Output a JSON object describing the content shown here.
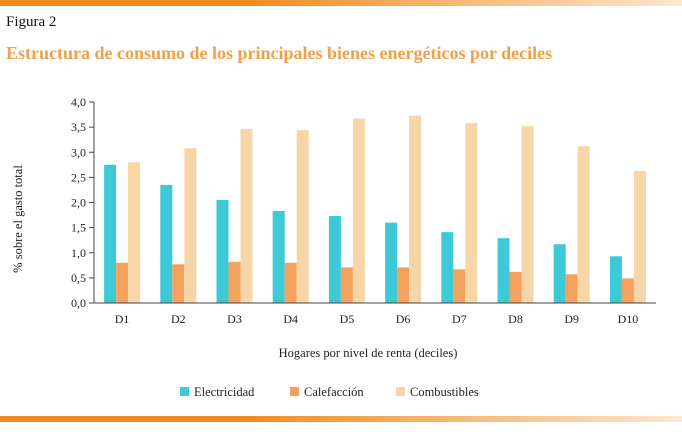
{
  "figure": {
    "label": "Figura 2",
    "title": "Estructura de consumo de los principales bienes energéticos por deciles"
  },
  "colors": {
    "accent": "#f0a048",
    "rule_start": "#f28a1e",
    "rule_end": "#fde7cf",
    "Electricidad": "#3ec9d6",
    "Calefacción": "#f4a15e",
    "Combustibles": "#f6d6a6",
    "axis": "#444444"
  },
  "chart_data": {
    "type": "bar",
    "title": "Estructura de consumo de los principales bienes energéticos por deciles",
    "xlabel": "Hogares por nivel de renta (deciles)",
    "ylabel": "% sobre el gasto total",
    "ylim": [
      0,
      4
    ],
    "yticks": [
      "0,0",
      "0,5",
      "1,0",
      "1,5",
      "2,0",
      "2,5",
      "3,0",
      "3,5",
      "4,0"
    ],
    "grid": false,
    "legend_position": "bottom",
    "categories": [
      "D1",
      "D2",
      "D3",
      "D4",
      "D5",
      "D6",
      "D7",
      "D8",
      "D9",
      "D10"
    ],
    "series": [
      {
        "name": "Electricidad",
        "values": [
          2.75,
          2.35,
          2.05,
          1.83,
          1.73,
          1.6,
          1.41,
          1.29,
          1.17,
          0.93
        ]
      },
      {
        "name": "Calefacción",
        "values": [
          0.8,
          0.77,
          0.82,
          0.8,
          0.71,
          0.71,
          0.67,
          0.62,
          0.57,
          0.49
        ]
      },
      {
        "name": "Combustibles",
        "values": [
          2.8,
          3.08,
          3.46,
          3.44,
          3.67,
          3.73,
          3.58,
          3.52,
          3.12,
          2.63
        ]
      }
    ]
  }
}
